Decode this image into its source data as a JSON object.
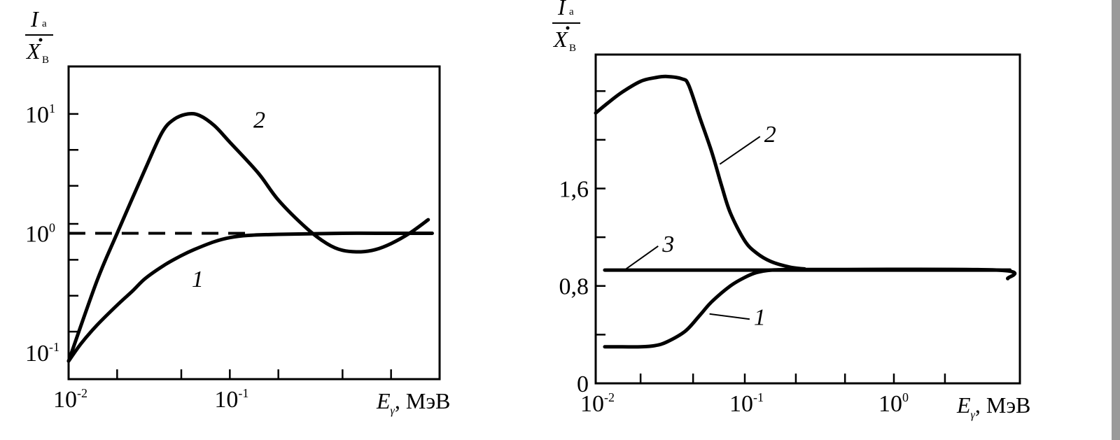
{
  "chart_data": [
    {
      "type": "line",
      "panel": "left",
      "title": "",
      "xlabel": "E_γ, МэВ",
      "xlabel_main": "E",
      "xlabel_sub": "γ",
      "xlabel_unit": ", МэВ",
      "ylabel_num": "I",
      "ylabel_num_sub": "a",
      "ylabel_den": "X",
      "ylabel_den_sub": "B",
      "xscale": "log",
      "yscale": "log",
      "xlim": [
        0.01,
        2.0
      ],
      "ylim": [
        0.06,
        25
      ],
      "xtick_labels": [
        {
          "value": 0.01,
          "base": "10",
          "exp": "-2"
        },
        {
          "value": 0.1,
          "base": "10",
          "exp": "-1"
        }
      ],
      "xtick_marks": [
        0.02,
        0.05,
        0.1,
        0.2,
        0.5,
        1.0
      ],
      "ytick_labels": [
        {
          "value": 0.1,
          "base": "10",
          "exp": "-1"
        },
        {
          "value": 1,
          "base": "10",
          "exp": "0"
        },
        {
          "value": 10,
          "base": "10",
          "exp": "1"
        }
      ],
      "ytick_marks": [
        10,
        5,
        2.5,
        1.2,
        0.6,
        0.3,
        0.15
      ],
      "grid": false,
      "series": [
        {
          "name": "1",
          "style": "solid",
          "x": [
            0.01,
            0.012,
            0.015,
            0.02,
            0.025,
            0.03,
            0.04,
            0.05,
            0.06,
            0.08,
            0.1,
            0.13,
            0.2,
            0.5,
            1.0,
            1.8
          ],
          "y": [
            0.085,
            0.12,
            0.17,
            0.25,
            0.33,
            0.42,
            0.55,
            0.65,
            0.73,
            0.85,
            0.92,
            0.96,
            0.98,
            1.0,
            1.0,
            1.0
          ]
        },
        {
          "name": "2",
          "style": "solid",
          "x": [
            0.01,
            0.015,
            0.02,
            0.03,
            0.038,
            0.045,
            0.055,
            0.065,
            0.08,
            0.1,
            0.15,
            0.2,
            0.3,
            0.4,
            0.5,
            0.65,
            0.8,
            1.0,
            1.3,
            1.7
          ],
          "y": [
            0.085,
            0.4,
            1.0,
            3.5,
            7.0,
            9.0,
            10.0,
            9.7,
            8.0,
            5.8,
            3.2,
            1.9,
            1.1,
            0.82,
            0.72,
            0.7,
            0.73,
            0.82,
            1.0,
            1.3
          ]
        },
        {
          "name": "dashed",
          "style": "dashed",
          "x": [
            0.01,
            0.13
          ],
          "y": [
            1.0,
            1.0
          ]
        }
      ],
      "curve_labels": [
        {
          "text": "1",
          "x": 0.058,
          "y": 0.42
        },
        {
          "text": "2",
          "x": 0.14,
          "y": 9.0
        }
      ]
    },
    {
      "type": "line",
      "panel": "right",
      "title": "",
      "xlabel": "E_γ, МэВ",
      "xlabel_main": "E",
      "xlabel_sub": "γ",
      "xlabel_unit": ", МэВ",
      "ylabel_num": "I",
      "ylabel_num_sub": "a",
      "ylabel_den": "X",
      "ylabel_den_sub": "B",
      "xscale": "log",
      "yscale": "linear",
      "xlim": [
        0.01,
        7.0
      ],
      "ylim": [
        0,
        2.7
      ],
      "xtick_labels": [
        {
          "value": 0.01,
          "base": "10",
          "exp": "-2"
        },
        {
          "value": 0.1,
          "base": "10",
          "exp": "-1"
        },
        {
          "value": 1,
          "base": "10",
          "exp": "0"
        }
      ],
      "xtick_marks": [
        0.02,
        0.045,
        0.1,
        0.22,
        0.47,
        1.0,
        2.2
      ],
      "ytick_labels": [
        {
          "value": 0,
          "text": "0"
        },
        {
          "value": 0.8,
          "text": "0,8"
        },
        {
          "value": 1.6,
          "text": "1,6"
        }
      ],
      "ytick_marks": [
        0.4,
        0.8,
        1.2,
        1.6,
        2.0,
        2.4
      ],
      "grid": false,
      "series": [
        {
          "name": "1",
          "style": "solid",
          "x": [
            0.0115,
            0.015,
            0.02,
            0.025,
            0.03,
            0.04,
            0.05,
            0.06,
            0.08,
            0.1,
            0.12,
            0.15,
            0.2
          ],
          "y": [
            0.3,
            0.3,
            0.3,
            0.31,
            0.34,
            0.43,
            0.56,
            0.67,
            0.8,
            0.87,
            0.91,
            0.93,
            0.935
          ]
        },
        {
          "name": "2",
          "style": "solid",
          "x": [
            0.01,
            0.012,
            0.015,
            0.02,
            0.025,
            0.03,
            0.038,
            0.042,
            0.05,
            0.06,
            0.07,
            0.08,
            0.1,
            0.12,
            0.15,
            0.2,
            0.25,
            0.3,
            5.0,
            5.8
          ],
          "y": [
            2.22,
            2.3,
            2.39,
            2.48,
            2.51,
            2.52,
            2.5,
            2.45,
            2.18,
            1.9,
            1.62,
            1.4,
            1.17,
            1.07,
            1.0,
            0.955,
            0.94,
            0.935,
            0.93,
            0.86
          ]
        },
        {
          "name": "3",
          "style": "solid",
          "x": [
            0.0115,
            6.0
          ],
          "y": [
            0.93,
            0.93
          ]
        }
      ],
      "curve_labels": [
        {
          "text": "1",
          "x": 0.115,
          "y": 0.55,
          "leader_to": [
            0.058,
            0.57
          ]
        },
        {
          "text": "2",
          "x": 0.135,
          "y": 2.05,
          "leader_to": [
            0.068,
            1.8
          ]
        },
        {
          "text": "3",
          "x": 0.028,
          "y": 1.15,
          "leader_to": [
            0.016,
            0.94
          ]
        }
      ]
    }
  ]
}
